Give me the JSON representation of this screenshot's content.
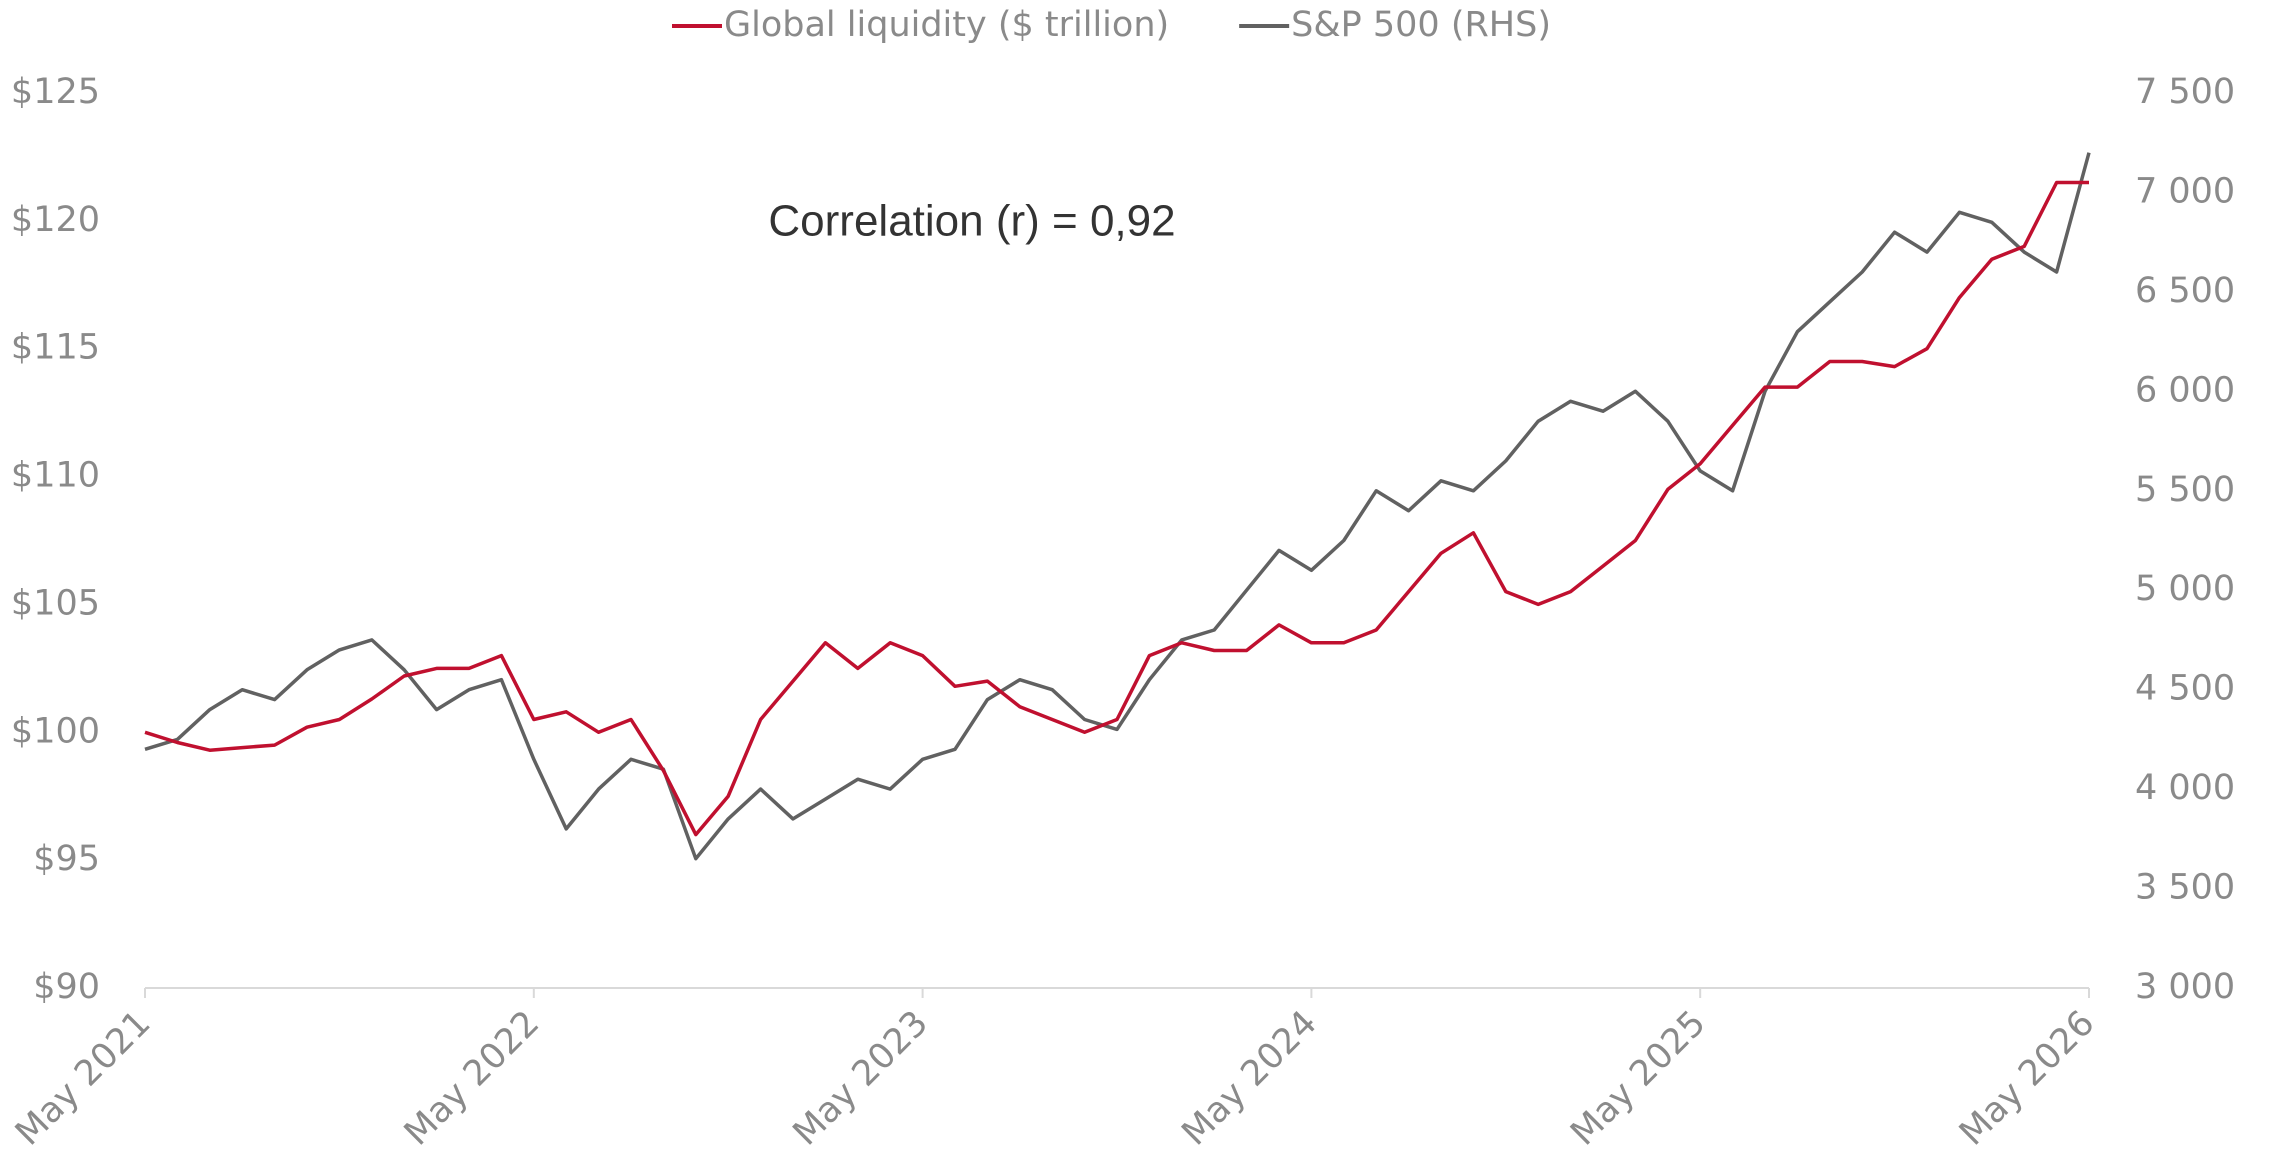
{
  "chart_data": {
    "type": "line",
    "annotation": "Correlation (r) = 0,92",
    "x": [
      "2021-05",
      "2021-06",
      "2021-07",
      "2021-08",
      "2021-09",
      "2021-10",
      "2021-11",
      "2021-12",
      "2022-01",
      "2022-02",
      "2022-03",
      "2022-04",
      "2022-05",
      "2022-06",
      "2022-07",
      "2022-08",
      "2022-09",
      "2022-10",
      "2022-11",
      "2022-12",
      "2023-01",
      "2023-02",
      "2023-03",
      "2023-04",
      "2023-05",
      "2023-06",
      "2023-07",
      "2023-08",
      "2023-09",
      "2023-10",
      "2023-11",
      "2023-12",
      "2024-01",
      "2024-02",
      "2024-03",
      "2024-04",
      "2024-05",
      "2024-06",
      "2024-07",
      "2024-08",
      "2024-09",
      "2024-10",
      "2024-11",
      "2024-12",
      "2025-01",
      "2025-02",
      "2025-03",
      "2025-04",
      "2025-05",
      "2025-06",
      "2025-07",
      "2025-08",
      "2025-09",
      "2025-10",
      "2025-11",
      "2025-12",
      "2026-01",
      "2026-02",
      "2026-03",
      "2026-04",
      "2026-05"
    ],
    "series": [
      {
        "name": "Global liquidity ($ trillion)",
        "color": "#c0102f",
        "values": [
          100,
          99.6,
          99.3,
          99.4,
          99.5,
          100.2,
          100.5,
          101.3,
          102.2,
          102.5,
          102.5,
          103,
          100.5,
          100.8,
          100,
          100.5,
          98.5,
          96,
          97.5,
          100.5,
          102,
          103.5,
          102.5,
          103.5,
          103,
          101.8,
          102,
          101,
          100.5,
          100,
          100.5,
          103,
          103.5,
          103.2,
          103.2,
          104.2,
          103.5,
          103.5,
          104,
          105.5,
          107,
          107.8,
          105.5,
          105,
          105.5,
          106.5,
          107.5,
          109.5,
          110.5,
          112,
          113.5,
          113.5,
          114.5,
          114.5,
          114.3,
          115,
          117,
          118.5,
          119,
          121.5,
          121.5
        ]
      },
      {
        "name": "S&P 500 (RHS)",
        "color": "#616161",
        "axis": "y2",
        "values": [
          4200,
          4250,
          4400,
          4500,
          4450,
          4600,
          4700,
          4750,
          4600,
          4400,
          4500,
          4550,
          4150,
          3800,
          4000,
          4150,
          4100,
          3650,
          3850,
          4000,
          3850,
          3950,
          4050,
          4000,
          4150,
          4200,
          4450,
          4550,
          4500,
          4350,
          4300,
          4550,
          4750,
          4800,
          5000,
          5200,
          5100,
          5250,
          5500,
          5400,
          5550,
          5500,
          5650,
          5850,
          5950,
          5900,
          6000,
          5850,
          5600,
          5500,
          6000,
          6300,
          6450,
          6600,
          6800,
          6700,
          6900,
          6850,
          6700,
          6600,
          7200
        ]
      }
    ],
    "xlim": [
      "2021-05",
      "2026-05"
    ],
    "xticks": [
      {
        "value": "2021-05",
        "label": "May 2021"
      },
      {
        "value": "2022-05",
        "label": "May 2022"
      },
      {
        "value": "2023-05",
        "label": "May 2023"
      },
      {
        "value": "2024-05",
        "label": "May 2024"
      },
      {
        "value": "2025-05",
        "label": "May 2025"
      },
      {
        "value": "2026-05",
        "label": "May 2026"
      }
    ],
    "ylim": [
      90,
      125
    ],
    "yticks": [
      {
        "value": 90,
        "label": "$90"
      },
      {
        "value": 95,
        "label": "$95"
      },
      {
        "value": 100,
        "label": "$100"
      },
      {
        "value": 105,
        "label": "$105"
      },
      {
        "value": 110,
        "label": "$110"
      },
      {
        "value": 115,
        "label": "$115"
      },
      {
        "value": 120,
        "label": "$120"
      },
      {
        "value": 125,
        "label": "$125"
      }
    ],
    "y2lim": [
      3000,
      7500
    ],
    "y2ticks": [
      {
        "value": 3000,
        "label": "3 000"
      },
      {
        "value": 3500,
        "label": "3 500"
      },
      {
        "value": 4000,
        "label": "4 000"
      },
      {
        "value": 4500,
        "label": "4 500"
      },
      {
        "value": 5000,
        "label": "5 000"
      },
      {
        "value": 5500,
        "label": "5 500"
      },
      {
        "value": 6000,
        "label": "6 000"
      },
      {
        "value": 6500,
        "label": "6 500"
      },
      {
        "value": 7000,
        "label": "7 000"
      },
      {
        "value": 7500,
        "label": "7 500"
      }
    ],
    "legend": "top"
  }
}
